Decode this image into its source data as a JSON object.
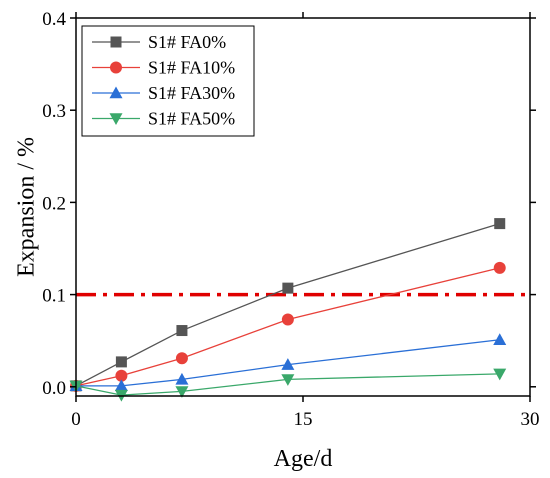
{
  "chart_data": {
    "type": "line",
    "title": "",
    "xlabel": "Age/d",
    "ylabel": "Expansion / %",
    "xlim": [
      0,
      30
    ],
    "ylim": [
      -0.01,
      0.4
    ],
    "xticks": [
      0,
      15,
      30
    ],
    "xtick_labels": [
      "0",
      "15",
      "30"
    ],
    "yticks": [
      0.0,
      0.1,
      0.2,
      0.3,
      0.4
    ],
    "ytick_labels": [
      "0.0",
      "0.1",
      "0.2",
      "0.3",
      "0.4"
    ],
    "grid": false,
    "legend_position": "top-left",
    "threshold_line": {
      "y": 0.1,
      "style": "dash-dot",
      "color": "#e00000"
    },
    "series": [
      {
        "name": "S1# FA0%",
        "color": "#555555",
        "marker": "square",
        "x": [
          0,
          3,
          7,
          14,
          28
        ],
        "y": [
          0.001,
          0.027,
          0.061,
          0.107,
          0.177
        ]
      },
      {
        "name": "S1# FA10%",
        "color": "#e8413a",
        "marker": "circle",
        "x": [
          0,
          3,
          7,
          14,
          28
        ],
        "y": [
          0.001,
          0.012,
          0.031,
          0.073,
          0.129
        ]
      },
      {
        "name": "S1# FA30%",
        "color": "#2a6fd6",
        "marker": "triangle-up",
        "x": [
          0,
          3,
          7,
          14,
          28
        ],
        "y": [
          0.001,
          0.001,
          0.008,
          0.024,
          0.051
        ]
      },
      {
        "name": "S1# FA50%",
        "color": "#3aa86a",
        "marker": "triangle-down",
        "x": [
          0,
          3,
          7,
          14,
          28
        ],
        "y": [
          0.001,
          -0.009,
          -0.005,
          0.008,
          0.014
        ]
      }
    ]
  }
}
